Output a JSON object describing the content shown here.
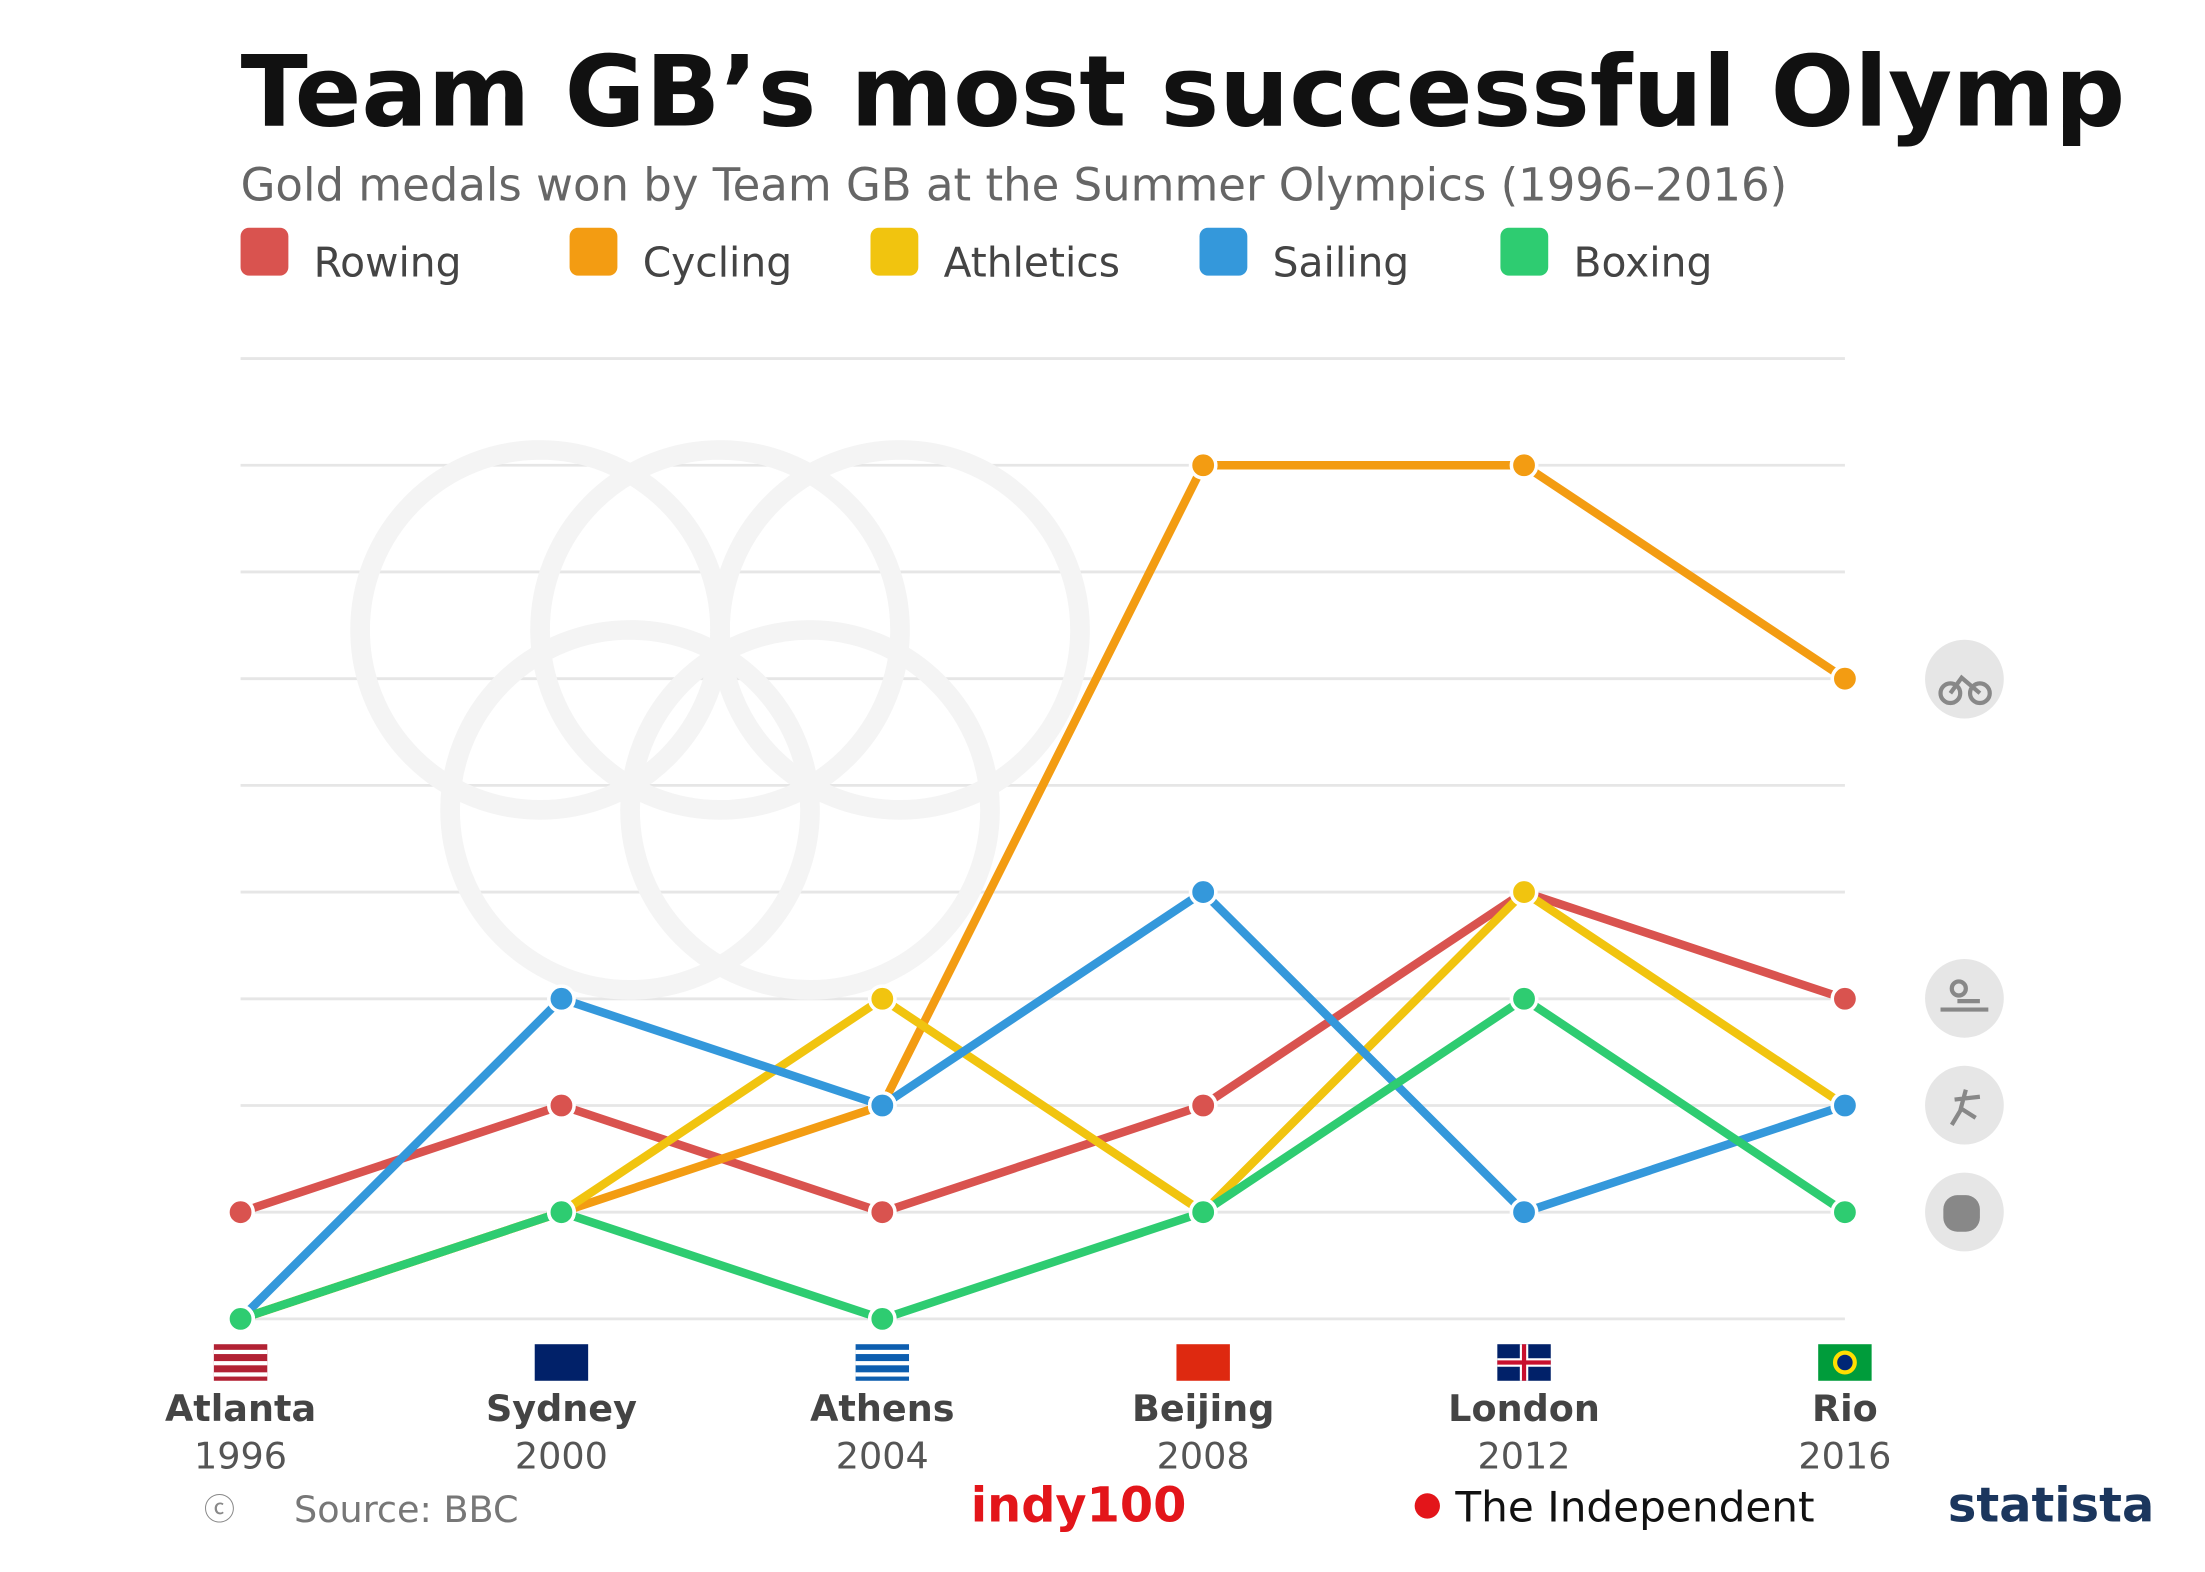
{
  "chart_data": {
    "type": "line",
    "title": "Team GB’s most successful Olymp",
    "subtitle": "Gold medals won by Team GB at the Summer Olympics (1996–2016)",
    "categories": [
      "Atlanta",
      "Sydney",
      "Athens",
      "Beijing",
      "London",
      "Rio"
    ],
    "years": [
      "1996",
      "2000",
      "2004",
      "2008",
      "2012",
      "2016"
    ],
    "series": [
      {
        "name": "Rowing",
        "color": "#d9534f",
        "values": [
          1,
          2,
          1,
          2,
          4,
          3
        ]
      },
      {
        "name": "Cycling",
        "color": "#f39c12",
        "values": [
          0,
          1,
          2,
          8,
          8,
          6
        ]
      },
      {
        "name": "Athletics",
        "color": "#f1c40f",
        "values": [
          0,
          1,
          3,
          1,
          4,
          2
        ]
      },
      {
        "name": "Sailing",
        "color": "#3498db",
        "values": [
          0,
          3,
          2,
          4,
          1,
          2
        ]
      },
      {
        "name": "Boxing",
        "color": "#2ecc71",
        "values": [
          0,
          1,
          0,
          1,
          3,
          1
        ]
      }
    ],
    "ylim": [
      0,
      9
    ],
    "yticks": [
      0,
      1,
      2,
      3,
      4,
      5,
      6,
      7,
      8,
      9
    ],
    "grid": true,
    "source": "Source: BBC",
    "brand1": "indy100",
    "brand2": "The Independent",
    "brand3": "statista"
  }
}
